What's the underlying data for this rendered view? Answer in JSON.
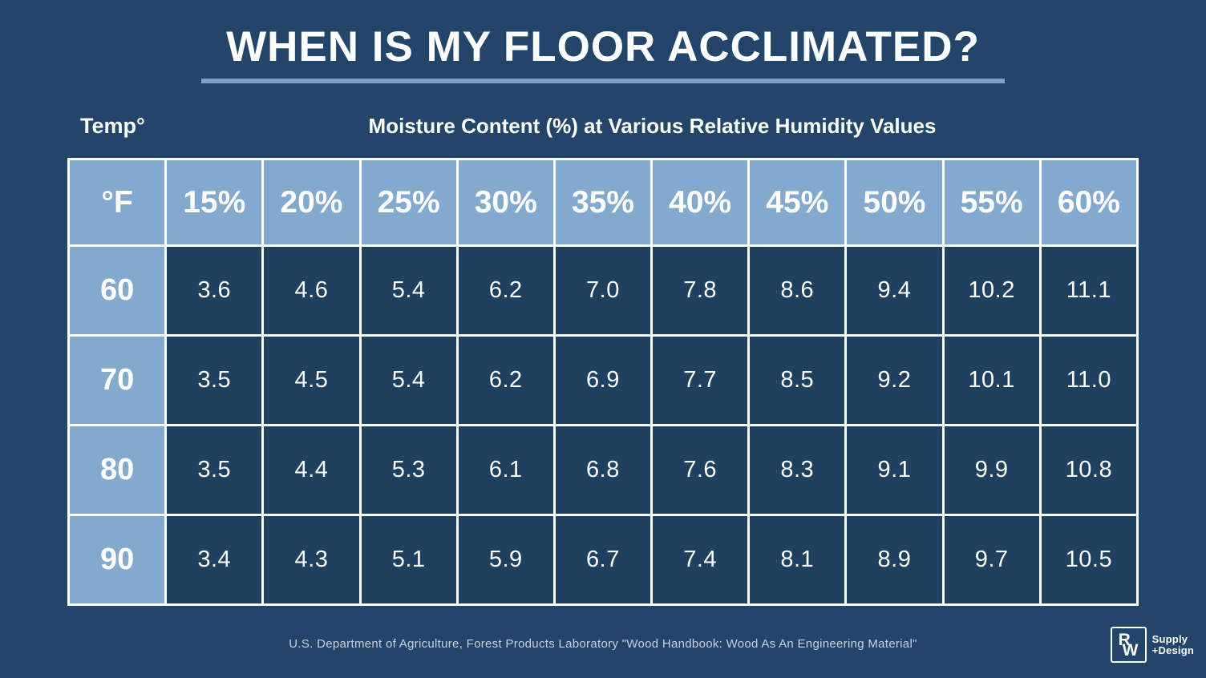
{
  "header": {
    "title": "WHEN IS MY FLOOR ACCLIMATED?",
    "temp_label": "Temp°",
    "subtitle": "Moisture Content (%) at Various Relative Humidity Values"
  },
  "chart_data": {
    "type": "table",
    "title": "Moisture Content (%) at Various Relative Humidity Values",
    "columns": [
      "°F",
      "15%",
      "20%",
      "25%",
      "30%",
      "35%",
      "40%",
      "45%",
      "50%",
      "55%",
      "60%"
    ],
    "rows": [
      {
        "temp": "60",
        "values": [
          "3.6",
          "4.6",
          "5.4",
          "6.2",
          "7.0",
          "7.8",
          "8.6",
          "9.4",
          "10.2",
          "11.1"
        ]
      },
      {
        "temp": "70",
        "values": [
          "3.5",
          "4.5",
          "5.4",
          "6.2",
          "6.9",
          "7.7",
          "8.5",
          "9.2",
          "10.1",
          "11.0"
        ]
      },
      {
        "temp": "80",
        "values": [
          "3.5",
          "4.4",
          "5.3",
          "6.1",
          "6.8",
          "7.6",
          "8.3",
          "9.1",
          "9.9",
          "10.8"
        ]
      },
      {
        "temp": "90",
        "values": [
          "3.4",
          "4.3",
          "5.1",
          "5.9",
          "6.7",
          "7.4",
          "8.1",
          "8.9",
          "9.7",
          "10.5"
        ]
      }
    ]
  },
  "footer": {
    "source": "U.S. Department of Agriculture, Forest Products Laboratory \"Wood Handbook: Wood As An Engineering Material\"",
    "logo": {
      "monogram_r": "R",
      "monogram_w": "W",
      "line1": "Supply",
      "line2": "+Design"
    }
  },
  "colors": {
    "background": "#234569",
    "cell_navy": "#20405F",
    "light_blue": "#84A9CE",
    "underline_blue": "#7CA3C7",
    "text_white": "#FFFFFF",
    "footer_text": "#C7D2DE"
  }
}
